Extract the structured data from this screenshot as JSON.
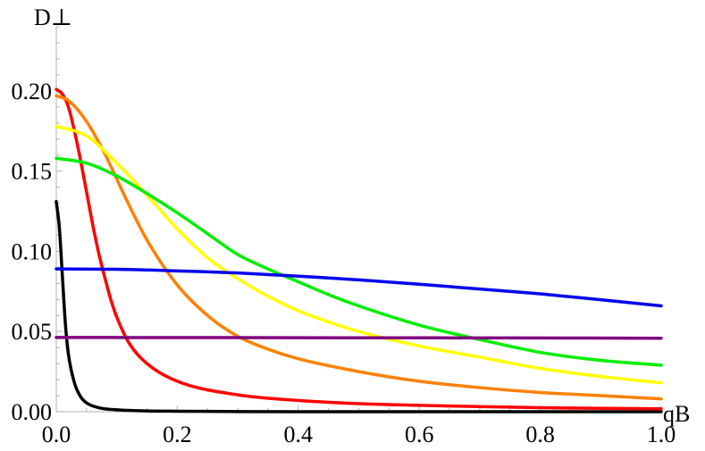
{
  "chart_data": {
    "type": "line",
    "xlabel": "qB",
    "ylabel": "D⊥",
    "xlim": [
      0,
      1
    ],
    "ylim": [
      0,
      0.24
    ],
    "x_ticks": [
      "0.0",
      "0.2",
      "0.4",
      "0.6",
      "0.8",
      "1.0"
    ],
    "x_tick_values": [
      0,
      0.2,
      0.4,
      0.6,
      0.8,
      1.0
    ],
    "y_ticks": [
      "0.00",
      "0.05",
      "0.10",
      "0.15",
      "0.20"
    ],
    "y_tick_values": [
      0,
      0.05,
      0.1,
      0.15,
      0.2
    ],
    "grid": false,
    "legend": "none",
    "series": [
      {
        "color": "#000000",
        "x": [
          0.0,
          0.005,
          0.01,
          0.015,
          0.02,
          0.03,
          0.04,
          0.05,
          0.07,
          0.1,
          0.15,
          0.2,
          0.3,
          0.5,
          0.7,
          1.0
        ],
        "y": [
          0.131,
          0.115,
          0.085,
          0.055,
          0.036,
          0.018,
          0.0095,
          0.0055,
          0.0025,
          0.0012,
          0.0005,
          0.0003,
          0.0001,
          0.0,
          0.0,
          0.0
        ]
      },
      {
        "color": "#ff0000",
        "x": [
          0.0,
          0.01,
          0.02,
          0.03,
          0.04,
          0.05,
          0.06,
          0.07,
          0.08,
          0.09,
          0.1,
          0.12,
          0.15,
          0.2,
          0.3,
          0.4,
          0.5,
          0.6,
          0.8,
          1.0
        ],
        "y": [
          0.201,
          0.198,
          0.19,
          0.175,
          0.157,
          0.137,
          0.117,
          0.099,
          0.084,
          0.07,
          0.059,
          0.043,
          0.03,
          0.019,
          0.0105,
          0.007,
          0.005,
          0.004,
          0.0025,
          0.0018
        ]
      },
      {
        "color": "#ff8000",
        "x": [
          0.0,
          0.02,
          0.05,
          0.08,
          0.1,
          0.12,
          0.15,
          0.2,
          0.25,
          0.3,
          0.35,
          0.4,
          0.5,
          0.6,
          0.7,
          0.8,
          0.9,
          1.0
        ],
        "y": [
          0.197,
          0.194,
          0.181,
          0.161,
          0.145,
          0.129,
          0.107,
          0.079,
          0.06,
          0.047,
          0.039,
          0.033,
          0.025,
          0.019,
          0.015,
          0.012,
          0.01,
          0.008
        ]
      },
      {
        "color": "#ffff00",
        "x": [
          0.0,
          0.05,
          0.1,
          0.15,
          0.2,
          0.25,
          0.3,
          0.35,
          0.4,
          0.5,
          0.6,
          0.7,
          0.8,
          0.9,
          1.0
        ],
        "y": [
          0.178,
          0.172,
          0.155,
          0.135,
          0.114,
          0.096,
          0.083,
          0.072,
          0.063,
          0.05,
          0.041,
          0.034,
          0.027,
          0.022,
          0.018
        ]
      },
      {
        "color": "#00ee00",
        "x": [
          0.0,
          0.05,
          0.1,
          0.15,
          0.2,
          0.25,
          0.3,
          0.35,
          0.4,
          0.45,
          0.5,
          0.6,
          0.7,
          0.8,
          0.9,
          1.0
        ],
        "y": [
          0.158,
          0.155,
          0.147,
          0.136,
          0.124,
          0.111,
          0.098,
          0.089,
          0.081,
          0.073,
          0.066,
          0.054,
          0.045,
          0.037,
          0.032,
          0.029
        ]
      },
      {
        "color": "#0000ee",
        "x": [
          0.0,
          0.1,
          0.2,
          0.3,
          0.4,
          0.5,
          0.6,
          0.7,
          0.8,
          0.9,
          1.0
        ],
        "y": [
          0.089,
          0.0888,
          0.0878,
          0.0865,
          0.0845,
          0.0822,
          0.0795,
          0.0765,
          0.0735,
          0.0698,
          0.066
        ]
      },
      {
        "color": "#800080",
        "x": [
          0.0,
          0.25,
          0.5,
          0.75,
          1.0
        ],
        "y": [
          0.0463,
          0.0462,
          0.0461,
          0.046,
          0.0458
        ]
      }
    ]
  }
}
